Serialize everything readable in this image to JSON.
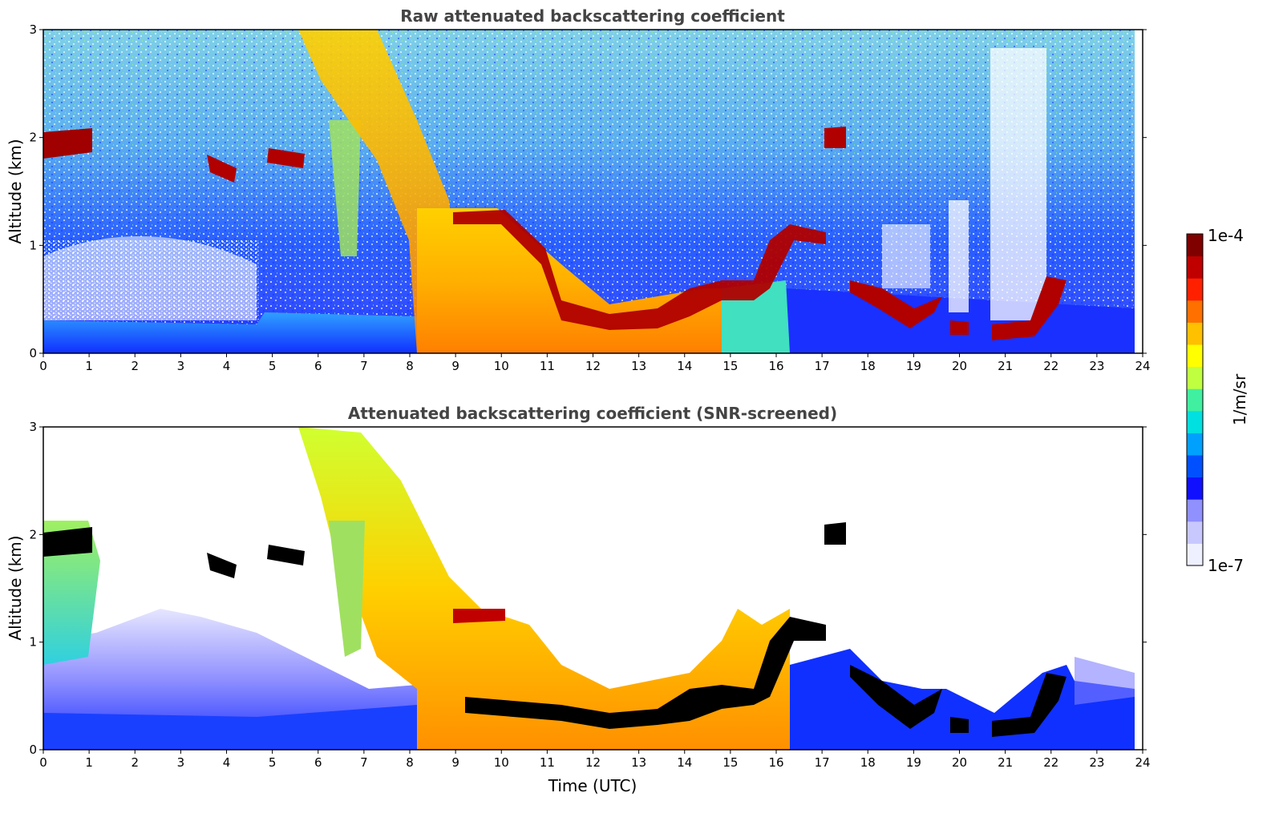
{
  "chart_data": [
    {
      "type": "heatmap",
      "title": "Raw attenuated backscattering coefficient",
      "xlabel": "",
      "ylabel": "Altitude (km)",
      "xlim": [
        0,
        24
      ],
      "ylim": [
        0,
        3
      ],
      "xticks": [
        "0",
        "1",
        "2",
        "3",
        "4",
        "5",
        "6",
        "7",
        "8",
        "9",
        "10",
        "11",
        "12",
        "13",
        "14",
        "15",
        "16",
        "17",
        "18",
        "19",
        "20",
        "21",
        "22",
        "23",
        "24"
      ],
      "yticks": [
        "0",
        "1",
        "2",
        "3"
      ],
      "data_extent_x": [
        0,
        23.8
      ],
      "background": {
        "description_value": "low",
        "boundary_layer_top_km": [
          [
            0,
            0.3
          ],
          [
            4,
            0.3
          ],
          [
            4.7,
            0.3
          ],
          [
            8,
            0.4
          ],
          [
            16,
            0.4
          ],
          [
            24,
            0.4
          ]
        ]
      },
      "features": [
        {
          "kind": "cloud",
          "x": [
            0,
            1.1
          ],
          "y": [
            1.8,
            2.1
          ],
          "value": "high"
        },
        {
          "kind": "cloud",
          "x": [
            3.6,
            4.2
          ],
          "y": [
            1.55,
            1.8
          ],
          "value": "high"
        },
        {
          "kind": "cloud",
          "x": [
            4.8,
            5.7
          ],
          "y": [
            1.7,
            1.9
          ],
          "value": "high"
        },
        {
          "kind": "cloud",
          "x": [
            17.0,
            17.5
          ],
          "y": [
            1.9,
            2.1
          ],
          "value": "high"
        },
        {
          "kind": "cloud_layer",
          "points": [
            [
              9,
              1.25
            ],
            [
              10,
              1.2
            ],
            [
              11,
              0.8
            ],
            [
              12,
              0.35
            ],
            [
              13,
              0.3
            ],
            [
              14,
              0.5
            ],
            [
              15,
              0.55
            ],
            [
              16,
              1.0
            ],
            [
              17,
              1.1
            ],
            [
              17.5,
              1.2
            ]
          ],
          "value": "high"
        },
        {
          "kind": "cloud_layer",
          "points": [
            [
              17.8,
              0.7
            ],
            [
              18.5,
              0.5
            ],
            [
              19,
              0.35
            ],
            [
              19.5,
              0.5
            ]
          ],
          "value": "high"
        },
        {
          "kind": "cloud_layer",
          "points": [
            [
              19.8,
              0.25
            ],
            [
              20.2,
              0.25
            ]
          ],
          "value": "high"
        },
        {
          "kind": "cloud_layer",
          "points": [
            [
              20.7,
              0.2
            ],
            [
              21.5,
              0.25
            ],
            [
              22,
              0.45
            ],
            [
              22.3,
              0.7
            ]
          ],
          "value": "high"
        },
        {
          "kind": "aerosol_plume",
          "x": [
            5.6,
            9.5
          ],
          "y": [
            0,
            3
          ],
          "value": "medium-high"
        },
        {
          "kind": "aerosol_plume",
          "x": [
            9,
            15
          ],
          "y": [
            0,
            1.2
          ],
          "value": "medium-high"
        }
      ]
    },
    {
      "type": "heatmap",
      "title": "Attenuated backscattering coefficient (SNR-screened)",
      "xlabel": "Time (UTC)",
      "ylabel": "Altitude (km)",
      "xlim": [
        0,
        24
      ],
      "ylim": [
        0,
        3
      ],
      "xticks": [
        "0",
        "1",
        "2",
        "3",
        "4",
        "5",
        "6",
        "7",
        "8",
        "9",
        "10",
        "11",
        "12",
        "13",
        "14",
        "15",
        "16",
        "17",
        "18",
        "19",
        "20",
        "21",
        "22",
        "23",
        "24"
      ],
      "yticks": [
        "0",
        "1",
        "2",
        "3"
      ],
      "data_extent_x": [
        0,
        23.8
      ],
      "screened_color": "#ffffff",
      "saturated_color": "#000000"
    }
  ],
  "colorbar": {
    "label": "1/m/sr",
    "max_label": "1e-4",
    "min_label": "1e-7",
    "range": [
      1e-07,
      0.0001
    ],
    "scale": "log",
    "colormap": [
      "#eef0ff",
      "#c8c8ff",
      "#9090ff",
      "#1010ff",
      "#0050ff",
      "#00a0ff",
      "#00e0e0",
      "#40f0a0",
      "#c0ff40",
      "#ffff00",
      "#ffc000",
      "#ff7000",
      "#ff2000",
      "#c00000",
      "#800000"
    ]
  }
}
